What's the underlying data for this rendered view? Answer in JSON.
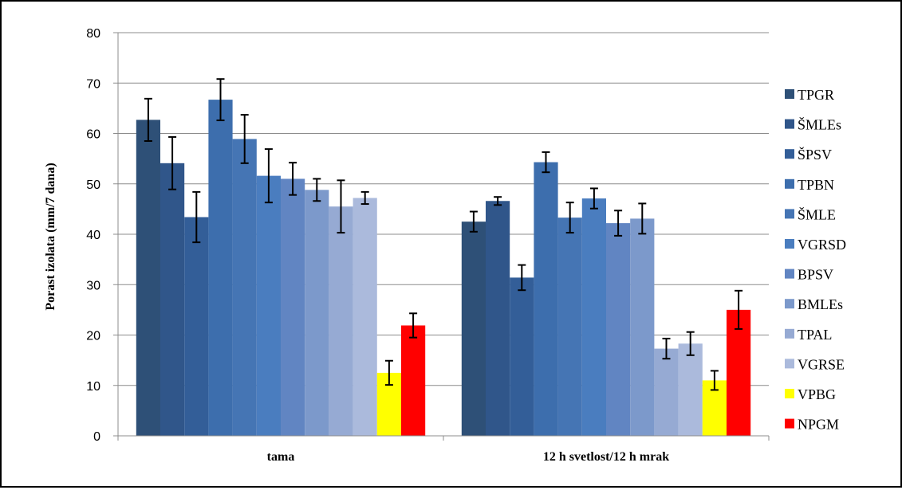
{
  "chart_data": {
    "type": "bar",
    "title": "",
    "xlabel": "",
    "ylabel": "Porast izolata (mm/7 dana)",
    "ylim": [
      0,
      80
    ],
    "yticks": [
      0,
      10,
      20,
      30,
      40,
      50,
      60,
      70,
      80
    ],
    "grid": true,
    "legend_position": "right",
    "categories": [
      "tama",
      "12 h svetlost/12 h mrak"
    ],
    "series": [
      {
        "name": "TPGR",
        "color": "#2E5077",
        "values": [
          62.7,
          42.5
        ],
        "errors": [
          4.2,
          2.0
        ]
      },
      {
        "name": "ŠMLEs",
        "color": "#30568A",
        "values": [
          54.1,
          46.6
        ],
        "errors": [
          5.2,
          0.8
        ]
      },
      {
        "name": "ŠPSV",
        "color": "#335E98",
        "values": [
          43.4,
          31.4
        ],
        "errors": [
          5.0,
          2.5
        ]
      },
      {
        "name": "TPBN",
        "color": "#3D6EAD",
        "values": [
          66.7,
          54.3
        ],
        "errors": [
          4.1,
          2.0
        ]
      },
      {
        "name": "ŠMLE",
        "color": "#4575B4",
        "values": [
          58.9,
          43.3
        ],
        "errors": [
          4.8,
          3.0
        ]
      },
      {
        "name": "VGRSD",
        "color": "#4A7DBF",
        "values": [
          51.6,
          47.1
        ],
        "errors": [
          5.3,
          2.0
        ]
      },
      {
        "name": "BPSV",
        "color": "#6185C2",
        "values": [
          51.0,
          42.2
        ],
        "errors": [
          3.2,
          2.5
        ]
      },
      {
        "name": "BMLEs",
        "color": "#7C99CB",
        "values": [
          48.8,
          43.1
        ],
        "errors": [
          2.2,
          3.0
        ]
      },
      {
        "name": "TPAL",
        "color": "#96AAD3",
        "values": [
          45.5,
          17.3
        ],
        "errors": [
          5.2,
          2.0
        ]
      },
      {
        "name": "VGRSE",
        "color": "#ABBADC",
        "values": [
          47.2,
          18.3
        ],
        "errors": [
          1.2,
          2.3
        ]
      },
      {
        "name": "VPBG",
        "color": "#FFFF00",
        "values": [
          12.5,
          11.0
        ],
        "errors": [
          2.4,
          1.9
        ]
      },
      {
        "name": "NPGM",
        "color": "#FF0000",
        "values": [
          21.9,
          25.0
        ],
        "errors": [
          2.4,
          3.8
        ]
      }
    ]
  }
}
